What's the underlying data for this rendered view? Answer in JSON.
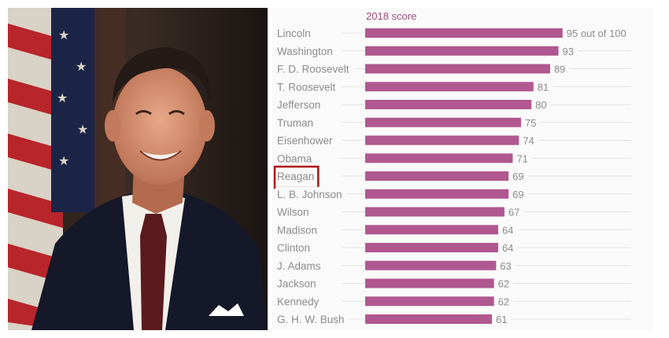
{
  "portrait": {
    "alt": "Reagan portrait"
  },
  "chart_data": {
    "type": "bar",
    "orientation": "horizontal",
    "column_header": "2018 score",
    "categories": [
      "Lincoln",
      "Washington",
      "F. D. Roosevelt",
      "T. Roosevelt",
      "Jefferson",
      "Truman",
      "Eisenhower",
      "Obama",
      "Reagan",
      "L. B. Johnson",
      "Wilson",
      "Madison",
      "Clinton",
      "J. Adams",
      "Jackson",
      "Kennedy",
      "G. H. W. Bush"
    ],
    "values": [
      95,
      93,
      89,
      81,
      80,
      75,
      74,
      71,
      69,
      69,
      67,
      64,
      64,
      63,
      62,
      62,
      61
    ],
    "value_labels": [
      "95 out of 100",
      "93",
      "89",
      "81",
      "80",
      "75",
      "74",
      "71",
      "69",
      "69",
      "67",
      "64",
      "64",
      "63",
      "62",
      "62",
      "61"
    ],
    "xlim": [
      0,
      100
    ],
    "highlighted_category": "Reagan",
    "colors": {
      "bar": "#b0588f",
      "highlight": "#b01313",
      "header": "#9c4a7e"
    },
    "grid": false
  }
}
